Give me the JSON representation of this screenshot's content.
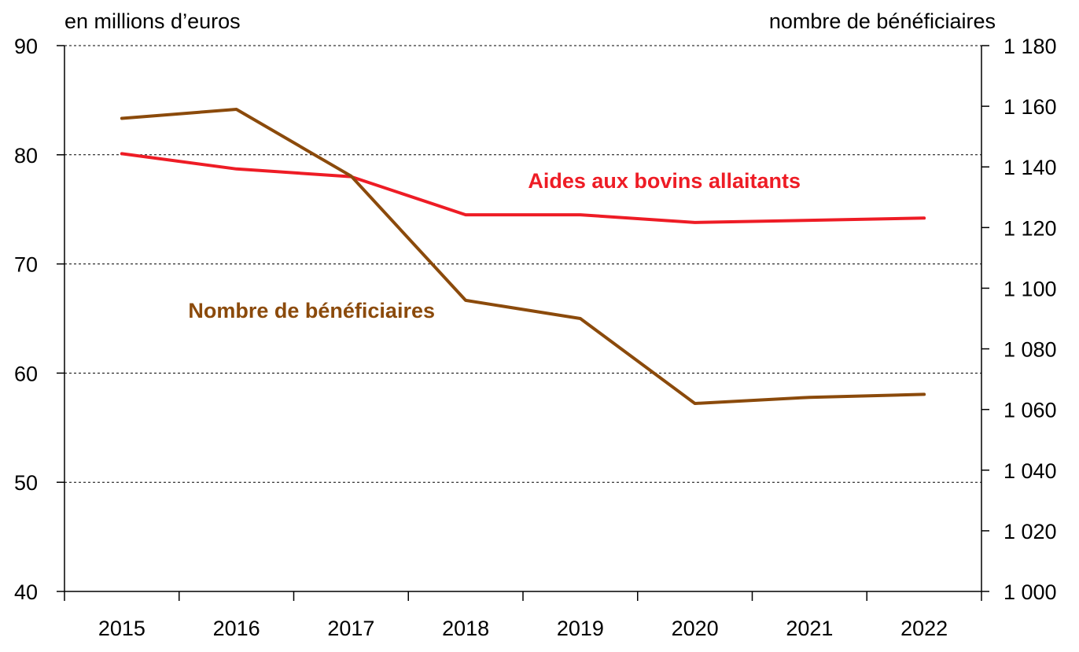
{
  "chart_data": {
    "type": "line",
    "left_axis_unit": "en millions d’euros",
    "right_axis_unit": "nombre de bénéficiaires",
    "categories": [
      "2015",
      "2016",
      "2017",
      "2018",
      "2019",
      "2020",
      "2021",
      "2022"
    ],
    "y_left": {
      "lim": [
        40,
        90
      ],
      "ticks": [
        {
          "value": 40,
          "label": "40"
        },
        {
          "value": 50,
          "label": "50"
        },
        {
          "value": 60,
          "label": "60"
        },
        {
          "value": 70,
          "label": "70"
        },
        {
          "value": 80,
          "label": "80"
        },
        {
          "value": 90,
          "label": "90"
        }
      ]
    },
    "y_right": {
      "lim": [
        1000,
        1180
      ],
      "ticks": [
        {
          "value": 1000,
          "label": "1 000"
        },
        {
          "value": 1020,
          "label": "1 020"
        },
        {
          "value": 1040,
          "label": "1 040"
        },
        {
          "value": 1060,
          "label": "1 060"
        },
        {
          "value": 1080,
          "label": "1 080"
        },
        {
          "value": 1100,
          "label": "1 100"
        },
        {
          "value": 1120,
          "label": "1 120"
        },
        {
          "value": 1140,
          "label": "1 140"
        },
        {
          "value": 1160,
          "label": "1 160"
        },
        {
          "value": 1180,
          "label": "1 180"
        }
      ]
    },
    "grid": "horizontal dashed at left-axis ticks",
    "series": [
      {
        "name": "Aides aux bovins allaitants",
        "axis": "left",
        "color": "#ee1c25",
        "values": [
          80.1,
          78.7,
          78.0,
          74.5,
          74.5,
          73.8,
          74.0,
          74.2
        ]
      },
      {
        "name": "Nombre de bénéficiaires",
        "axis": "right",
        "color": "#8b4a0b",
        "values": [
          1156,
          1159,
          1137,
          1096,
          1090,
          1062,
          1064,
          1065
        ]
      }
    ]
  }
}
